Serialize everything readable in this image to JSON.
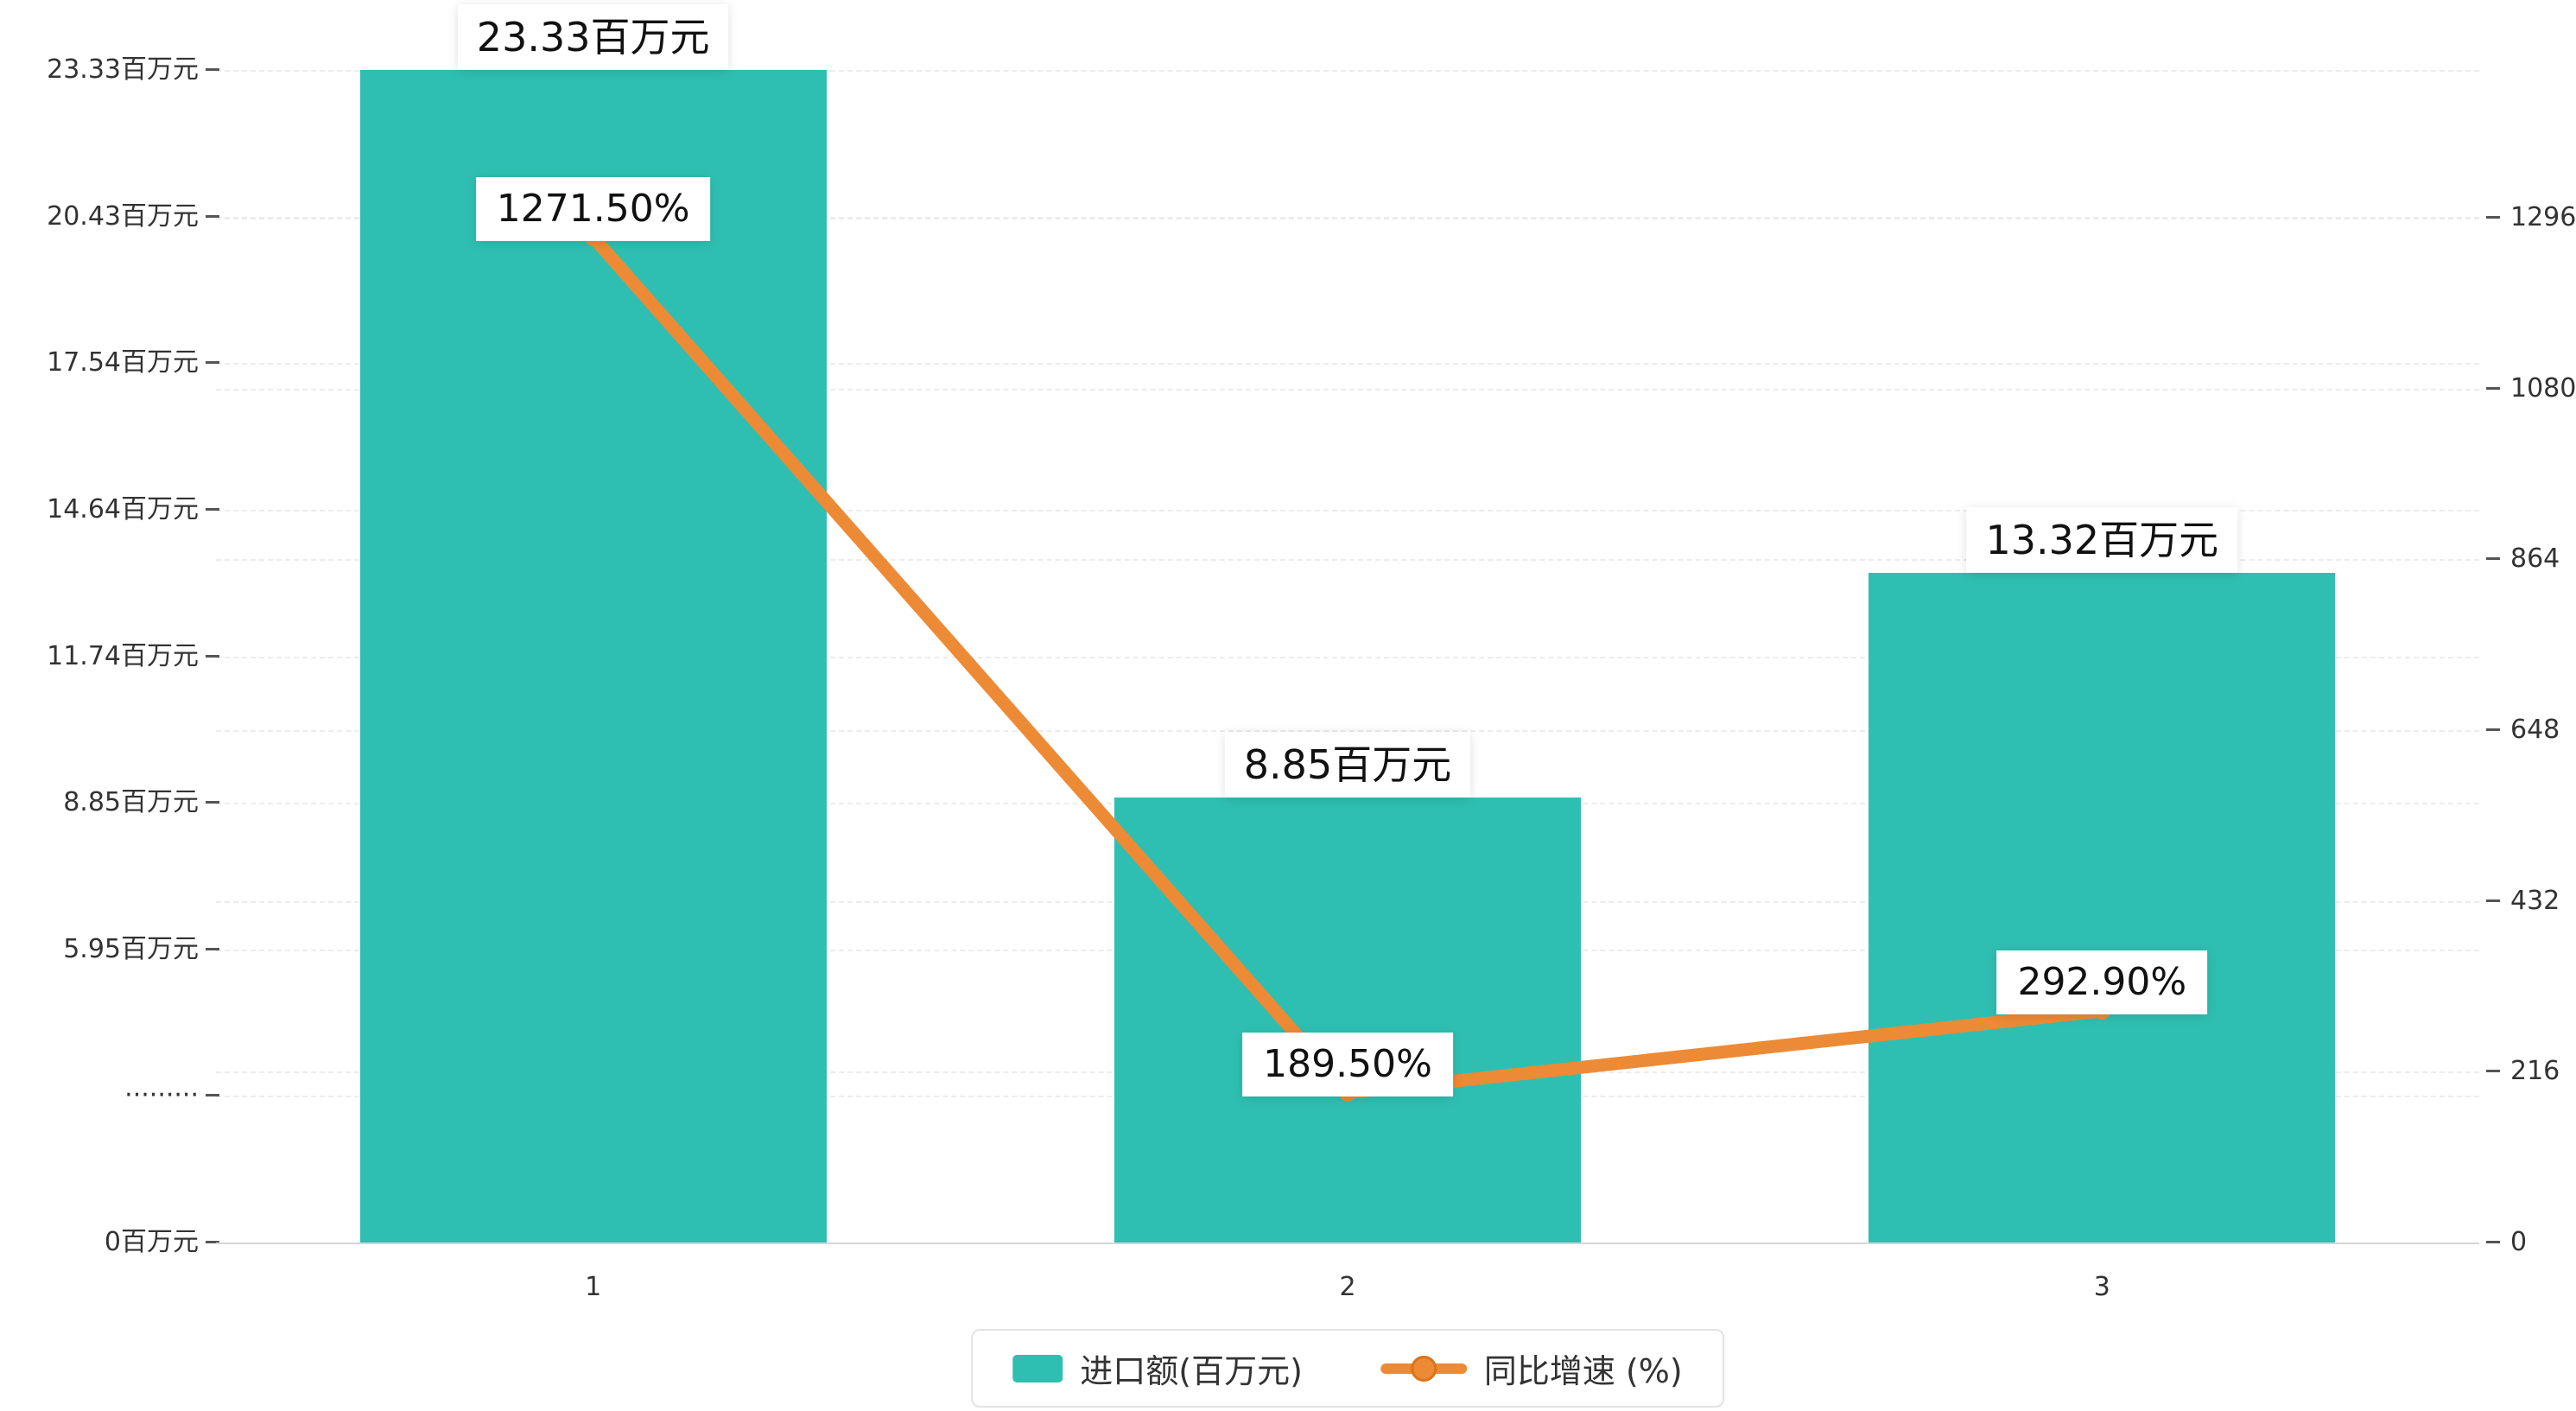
{
  "chart_data": {
    "type": "combo",
    "categories": [
      "1",
      "2",
      "3"
    ],
    "series": [
      {
        "name": "进口额(百万元)",
        "type": "bar",
        "axis": "left",
        "values": [
          23.33,
          8.85,
          13.32
        ],
        "data_labels": [
          "23.33百万元",
          "8.85百万元",
          "13.32百万元"
        ],
        "color": "#2fbfb2"
      },
      {
        "name": "同比增速 (%)",
        "type": "line",
        "axis": "right",
        "values": [
          1271.5,
          189.5,
          292.9
        ],
        "data_labels": [
          "1271.50%",
          "189.50%",
          "292.90%"
        ],
        "color": "#ed8a35"
      }
    ],
    "left_axis": {
      "tick_labels": [
        "0百万元",
        "·········",
        "5.95百万元",
        "8.85百万元",
        "11.74百万元",
        "14.64百万元",
        "17.54百万元",
        "20.43百万元",
        "23.33百万元"
      ],
      "min": 0,
      "max": 23.33
    },
    "right_axis": {
      "tick_labels": [
        "0",
        "216",
        "432",
        "648",
        "864",
        "1080",
        "1296"
      ],
      "tick_values": [
        0,
        216,
        432,
        648,
        864,
        1080,
        1296
      ],
      "min": 0,
      "max": 1483
    },
    "legend": {
      "position": "bottom",
      "items": [
        "进口额(百万元)",
        "同比增速 (%)"
      ]
    },
    "grid": true,
    "background": "#ffffff",
    "grid_color": "#ececec",
    "text_color": "#333333"
  }
}
